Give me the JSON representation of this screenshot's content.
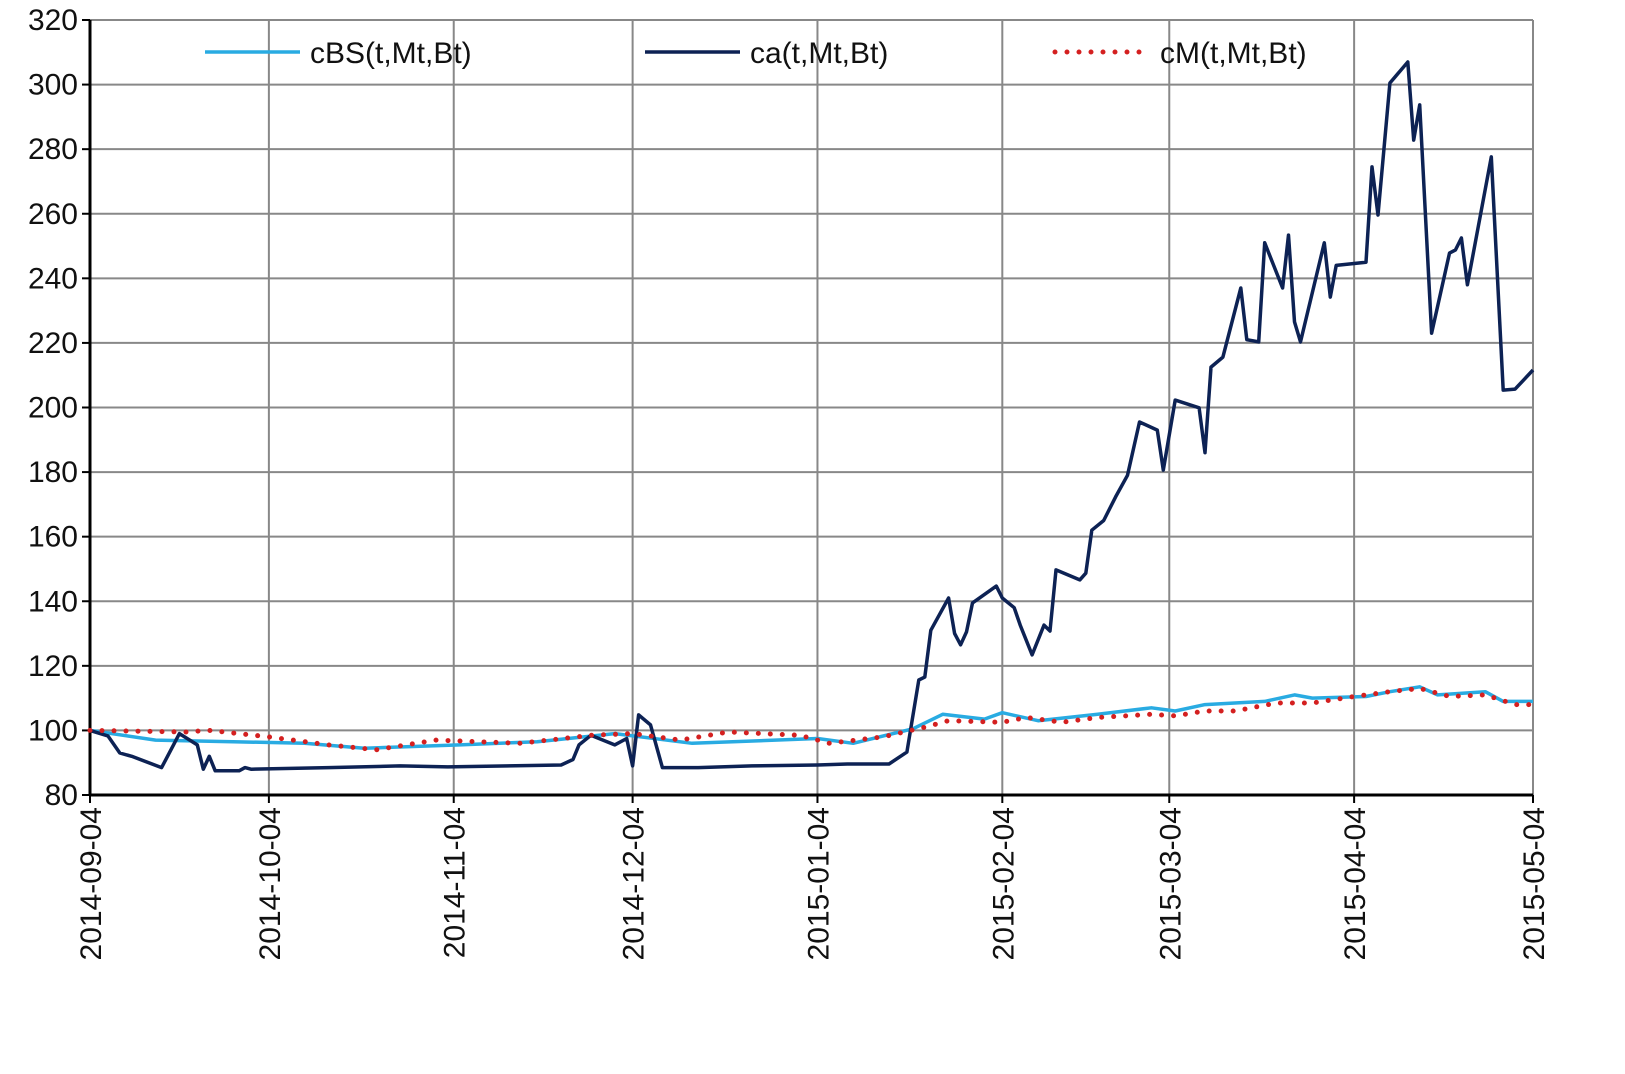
{
  "chart_data": {
    "type": "line",
    "xlim": [
      "2014-09-04",
      "2015-05-04"
    ],
    "xticks": [
      "2014-09-04",
      "2014-10-04",
      "2014-11-04",
      "2014-12-04",
      "2015-01-04",
      "2015-02-04",
      "2015-03-04",
      "2015-04-04",
      "2015-05-04"
    ],
    "ylim": [
      80,
      320
    ],
    "yticks": [
      80,
      100,
      120,
      140,
      160,
      180,
      200,
      220,
      240,
      260,
      280,
      300,
      320
    ],
    "grid": true,
    "legend": "top",
    "series": [
      {
        "name": "cBS(t,Mt,Bt)",
        "color": "#29abe2",
        "style": "solid",
        "x": [
          "2014-09-04",
          "2014-09-15",
          "2014-09-28",
          "2014-10-10",
          "2014-10-20",
          "2014-11-05",
          "2014-11-18",
          "2014-12-01",
          "2014-12-14",
          "2015-01-04",
          "2015-01-10",
          "2015-01-20",
          "2015-01-25",
          "2015-02-01",
          "2015-02-04",
          "2015-02-10",
          "2015-02-20",
          "2015-03-01",
          "2015-03-05",
          "2015-03-10",
          "2015-03-20",
          "2015-03-25",
          "2015-03-28",
          "2015-04-06",
          "2015-04-10",
          "2015-04-15",
          "2015-04-18",
          "2015-04-26",
          "2015-04-29",
          "2015-05-04"
        ],
        "values": [
          100,
          97,
          96.5,
          96,
          94.5,
          95.5,
          96.5,
          99,
          96,
          97.5,
          96,
          100.5,
          105,
          103.5,
          105.5,
          103,
          105,
          107,
          106,
          108,
          109,
          111,
          110,
          110.5,
          112,
          113.5,
          111,
          112,
          109,
          109
        ]
      },
      {
        "name": "ca(t,Mt,Bt)",
        "color": "#0d2254",
        "style": "solid",
        "x": [
          "2014-09-04",
          "2014-09-07",
          "2014-09-09",
          "2014-09-11",
          "2014-09-16",
          "2014-09-18",
          "2014-09-19",
          "2014-09-22",
          "2014-09-23",
          "2014-09-24",
          "2014-09-25",
          "2014-09-29",
          "2014-09-30",
          "2014-10-01",
          "2014-10-14",
          "2014-10-26",
          "2014-11-03",
          "2014-11-22",
          "2014-11-24",
          "2014-11-25",
          "2014-11-27",
          "2014-12-01",
          "2014-12-03",
          "2014-12-04",
          "2014-12-05",
          "2014-12-07",
          "2014-12-09",
          "2014-12-15",
          "2014-12-24",
          "2015-01-04",
          "2015-01-09",
          "2015-01-16",
          "2015-01-19",
          "2015-01-21",
          "2015-01-22",
          "2015-01-23",
          "2015-01-26",
          "2015-01-27",
          "2015-01-28",
          "2015-01-29",
          "2015-01-30",
          "2015-02-03",
          "2015-02-04",
          "2015-02-06",
          "2015-02-07",
          "2015-02-09",
          "2015-02-11",
          "2015-02-12",
          "2015-02-13",
          "2015-02-17",
          "2015-02-18",
          "2015-02-19",
          "2015-02-21",
          "2015-02-23",
          "2015-02-25",
          "2015-02-27",
          "2015-03-02",
          "2015-03-03",
          "2015-03-05",
          "2015-03-09",
          "2015-03-10",
          "2015-03-11",
          "2015-03-13",
          "2015-03-16",
          "2015-03-17",
          "2015-03-19",
          "2015-03-20",
          "2015-03-23",
          "2015-03-24",
          "2015-03-25",
          "2015-03-26",
          "2015-03-30",
          "2015-03-31",
          "2015-04-01",
          "2015-04-06",
          "2015-04-07",
          "2015-04-08",
          "2015-04-10",
          "2015-04-13",
          "2015-04-14",
          "2015-04-15",
          "2015-04-17",
          "2015-04-20",
          "2015-04-21",
          "2015-04-22",
          "2015-04-23",
          "2015-04-27",
          "2015-04-29",
          "2015-05-01",
          "2015-05-04"
        ],
        "values": [
          100,
          98.3,
          93,
          92,
          88.5,
          95.5,
          99,
          95.5,
          88,
          92,
          87.5,
          87.5,
          88.5,
          88,
          88.5,
          89,
          88.7,
          89.3,
          91,
          95.5,
          98.5,
          95.5,
          97.5,
          89,
          104.8,
          101.7,
          88.5,
          88.5,
          89,
          89.3,
          89.6,
          89.6,
          93.3,
          115.6,
          116.5,
          131,
          141,
          130,
          126.5,
          130.5,
          139.5,
          144.7,
          141,
          138,
          132.6,
          123.4,
          132.6,
          130.8,
          149.7,
          146.6,
          148.7,
          162,
          165,
          172.3,
          179,
          195.5,
          193,
          180.6,
          202.3,
          199.9,
          186,
          212.5,
          215.6,
          237,
          221,
          220.3,
          251,
          237,
          253.4,
          226.5,
          220.3,
          251,
          234.2,
          244,
          245,
          274.5,
          259.6,
          300.5,
          307,
          282.8,
          293.7,
          223,
          247.8,
          248.8,
          252.5,
          238,
          277.6,
          205.4,
          205.7,
          211.6
        ]
      },
      {
        "name": "cM(t,Mt,Bt)",
        "color": "#d42020",
        "style": "dotted",
        "x": [
          "2014-09-04",
          "2014-09-20",
          "2014-09-24",
          "2014-10-04",
          "2014-10-14",
          "2014-10-22",
          "2014-11-01",
          "2014-11-15",
          "2014-11-20",
          "2014-11-27",
          "2014-12-04",
          "2014-12-12",
          "2014-12-20",
          "2015-01-01",
          "2015-01-06",
          "2015-01-15",
          "2015-01-22",
          "2015-01-26",
          "2015-02-04",
          "2015-02-08",
          "2015-02-14",
          "2015-02-20",
          "2015-03-01",
          "2015-03-05",
          "2015-03-10",
          "2015-03-15",
          "2015-03-22",
          "2015-03-28",
          "2015-04-04",
          "2015-04-10",
          "2015-04-15",
          "2015-04-20",
          "2015-04-26",
          "2015-05-01",
          "2015-05-04"
        ],
        "values": [
          100,
          99.5,
          100,
          98,
          95.5,
          94,
          97,
          96,
          97,
          98.5,
          99,
          97,
          99.5,
          98.5,
          96,
          98,
          101,
          103,
          102.5,
          104,
          102.5,
          104,
          105,
          104.5,
          106,
          106,
          108.5,
          108.5,
          110.5,
          112,
          113,
          110.5,
          111,
          108,
          108
        ]
      }
    ]
  }
}
